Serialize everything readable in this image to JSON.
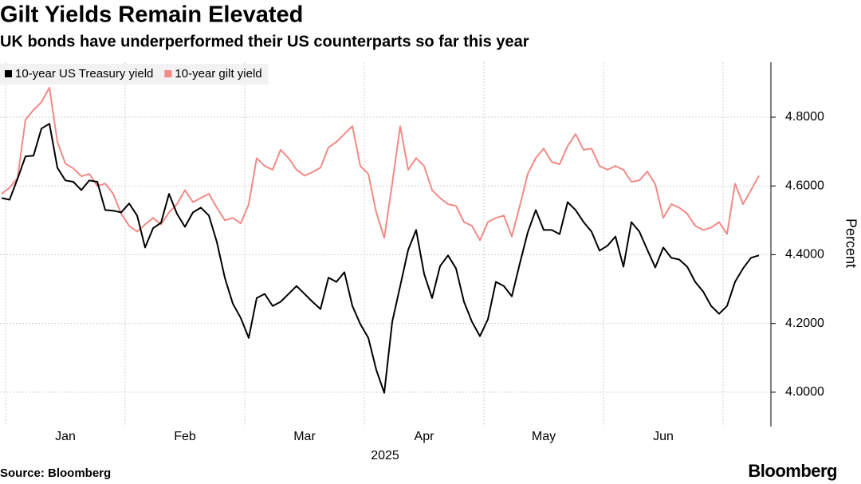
{
  "chart_data": {
    "type": "line",
    "title": "Gilt Yields Remain Elevated",
    "subtitle": "UK bonds have underperformed their US counterparts so far this year",
    "y_axis_label": "Percent",
    "x_axis_label": "2025",
    "source": "Source: Bloomberg",
    "brand": "Bloomberg",
    "legend": "top-left",
    "grid": true,
    "ylim": [
      3.9,
      4.96
    ],
    "yticks": [
      {
        "value": 4.0,
        "label": "4.0000"
      },
      {
        "value": 4.2,
        "label": "4.2000"
      },
      {
        "value": 4.4,
        "label": "4.4000"
      },
      {
        "value": 4.6,
        "label": "4.6000"
      },
      {
        "value": 4.8,
        "label": "4.8000"
      }
    ],
    "categories": [
      null,
      null,
      null,
      null,
      null,
      null,
      null,
      null,
      "Jan",
      null,
      null,
      null,
      null,
      null,
      null,
      null,
      null,
      null,
      null,
      null,
      null,
      null,
      null,
      "Feb",
      null,
      null,
      null,
      null,
      null,
      null,
      null,
      null,
      null,
      null,
      null,
      null,
      null,
      null,
      "Mar",
      null,
      null,
      null,
      null,
      null,
      null,
      null,
      null,
      null,
      null,
      null,
      null,
      null,
      null,
      "Apr",
      null,
      null,
      null,
      null,
      null,
      null,
      null,
      null,
      null,
      null,
      null,
      null,
      null,
      null,
      "May",
      null,
      null,
      null,
      null,
      null,
      null,
      null,
      null,
      null,
      null,
      null,
      null,
      null,
      null,
      "Jun",
      null,
      null,
      null,
      null,
      null,
      null,
      null,
      null,
      null,
      null,
      null,
      null
    ],
    "series": [
      {
        "name": "10-year US Treasury yield",
        "color": "#000000",
        "values": [
          4.565,
          4.56,
          4.621,
          4.686,
          4.688,
          4.767,
          4.781,
          4.653,
          4.616,
          4.612,
          4.588,
          4.616,
          4.612,
          4.53,
          4.528,
          4.523,
          4.549,
          4.514,
          4.421,
          4.477,
          4.493,
          4.577,
          4.519,
          4.481,
          4.523,
          4.537,
          4.514,
          4.437,
          4.333,
          4.258,
          4.216,
          4.158,
          4.274,
          4.286,
          4.251,
          4.263,
          4.286,
          4.309,
          4.286,
          4.263,
          4.242,
          4.333,
          4.321,
          4.349,
          4.251,
          4.198,
          4.158,
          4.065,
          3.998,
          4.205,
          4.309,
          4.414,
          4.472,
          4.344,
          4.274,
          4.367,
          4.398,
          4.36,
          4.263,
          4.205,
          4.163,
          4.212,
          4.321,
          4.309,
          4.279,
          4.374,
          4.465,
          4.53,
          4.472,
          4.472,
          4.46,
          4.553,
          4.53,
          4.495,
          4.467,
          4.412,
          4.426,
          4.453,
          4.365,
          4.495,
          4.467,
          4.414,
          4.363,
          4.421,
          4.391,
          4.386,
          4.365,
          4.321,
          4.293,
          4.251,
          4.228,
          4.251,
          4.321,
          4.36,
          4.391,
          4.398
        ]
      },
      {
        "name": "10-year gilt yield",
        "color": "#f28a86",
        "values": [
          4.577,
          4.595,
          4.623,
          4.793,
          4.821,
          4.844,
          4.886,
          4.728,
          4.665,
          4.651,
          4.628,
          4.635,
          4.6,
          4.607,
          4.577,
          4.519,
          4.484,
          4.467,
          4.488,
          4.507,
          4.488,
          4.523,
          4.547,
          4.588,
          4.553,
          4.565,
          4.577,
          4.537,
          4.5,
          4.507,
          4.491,
          4.547,
          4.681,
          4.658,
          4.647,
          4.705,
          4.681,
          4.647,
          4.63,
          4.64,
          4.653,
          4.712,
          4.728,
          4.751,
          4.774,
          4.658,
          4.635,
          4.523,
          4.449,
          4.607,
          4.774,
          4.647,
          4.681,
          4.658,
          4.588,
          4.565,
          4.547,
          4.542,
          4.495,
          4.484,
          4.442,
          4.495,
          4.507,
          4.514,
          4.453,
          4.542,
          4.635,
          4.681,
          4.709,
          4.67,
          4.663,
          4.716,
          4.751,
          4.705,
          4.709,
          4.658,
          4.647,
          4.658,
          4.647,
          4.612,
          4.616,
          4.642,
          4.605,
          4.507,
          4.547,
          4.537,
          4.519,
          4.484,
          4.472,
          4.479,
          4.495,
          4.46,
          4.607,
          4.547,
          4.588,
          4.63
        ]
      }
    ]
  }
}
